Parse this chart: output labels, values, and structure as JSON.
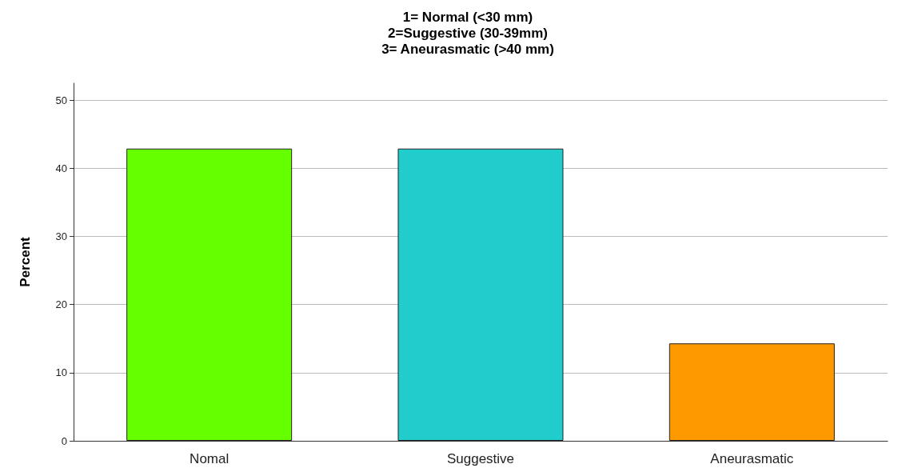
{
  "chart_data": {
    "type": "bar",
    "title": "1= Normal (<30 mm)\n2=Suggestive (30-39mm)\n3= Aneurasmatic (>40 mm)",
    "ylabel": "Percent",
    "categories": [
      "Nomal",
      "Suggestive",
      "Aneurasmatic"
    ],
    "values": [
      42.9,
      42.9,
      14.3
    ],
    "colors": [
      "#66ff00",
      "#20cccc",
      "#ff9900"
    ],
    "ylim": [
      0,
      52.5
    ],
    "yticks": [
      0,
      10,
      20,
      30,
      40,
      50
    ],
    "grid": "y"
  }
}
